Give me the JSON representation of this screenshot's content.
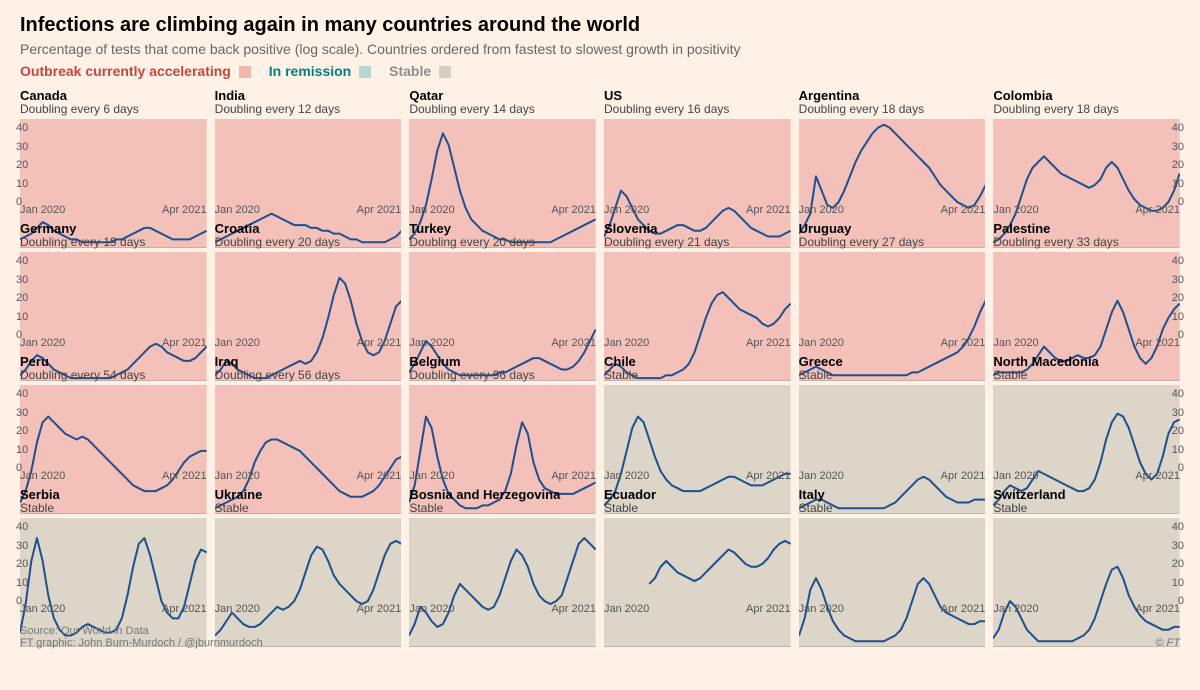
{
  "page_bg": "#fff1e5",
  "title": "Infections are climbing again in many countries around the world",
  "title_color": "#000000",
  "subtitle": "Percentage of tests that come back positive (log scale). Countries ordered from fastest to slowest growth in positivity",
  "subtitle_color": "#666666",
  "legend": [
    {
      "label": "Outbreak currently accelerating",
      "color": "#c4463e",
      "swatch": "#f0b8b0"
    },
    {
      "label": "In remission",
      "color": "#007f7f",
      "swatch": "#b6d8d2"
    },
    {
      "label": "Stable",
      "color": "#8c8c8c",
      "swatch": "#d6cfc3"
    }
  ],
  "ylim": [
    0,
    45
  ],
  "yticks": [
    0,
    10,
    20,
    30,
    40
  ],
  "xlabels": [
    "Jan 2020",
    "Apr 2021"
  ],
  "line_color": "#1e4f8f",
  "line_width": 2,
  "axis_color": "#999999",
  "plot_colors": {
    "accelerating": "#f3c1ba",
    "remission": "#bedbd6",
    "stable": "#dcd5c8"
  },
  "footer": {
    "source": "Source: Our World in Data",
    "credit": "FT graphic: John Burn-Murdoch / @jburnmurdoch",
    "copyright": "© FT"
  },
  "panels": [
    {
      "country": "Canada",
      "status": "Doubling every 6 days",
      "cat": "accelerating",
      "series": [
        3,
        4,
        5,
        7,
        9,
        8,
        6,
        5,
        4,
        3,
        3,
        2,
        2,
        2,
        2,
        2,
        2,
        3,
        3,
        4,
        5,
        6,
        7,
        7,
        6,
        5,
        4,
        3,
        3,
        3,
        3,
        4,
        5,
        6
      ]
    },
    {
      "country": "India",
      "status": "Doubling every 12 days",
      "cat": "accelerating",
      "series": [
        2,
        3,
        4,
        5,
        6,
        7,
        8,
        9,
        10,
        11,
        12,
        11,
        10,
        9,
        8,
        8,
        8,
        7,
        7,
        6,
        6,
        5,
        5,
        4,
        3,
        3,
        2,
        2,
        2,
        2,
        2,
        3,
        4,
        6
      ]
    },
    {
      "country": "Qatar",
      "status": "Doubling every 14 days",
      "cat": "accelerating",
      "series": [
        3,
        5,
        9,
        15,
        24,
        34,
        40,
        36,
        28,
        20,
        14,
        10,
        8,
        6,
        5,
        4,
        3,
        3,
        2,
        2,
        2,
        2,
        2,
        2,
        2,
        2,
        3,
        4,
        5,
        6,
        7,
        8,
        9,
        10
      ]
    },
    {
      "country": "US",
      "status": "Doubling every 16 days",
      "cat": "accelerating",
      "series": [
        4,
        8,
        14,
        20,
        18,
        14,
        10,
        8,
        6,
        5,
        5,
        6,
        7,
        8,
        8,
        7,
        6,
        6,
        7,
        9,
        11,
        13,
        14,
        13,
        11,
        9,
        7,
        6,
        5,
        4,
        4,
        4,
        5,
        6
      ]
    },
    {
      "country": "Argentina",
      "status": "Doubling every 18 days",
      "cat": "accelerating",
      "series": [
        5,
        8,
        12,
        25,
        20,
        15,
        14,
        16,
        20,
        25,
        30,
        34,
        37,
        40,
        42,
        43,
        42,
        40,
        38,
        36,
        34,
        32,
        30,
        28,
        25,
        22,
        20,
        18,
        16,
        15,
        14,
        15,
        18,
        22
      ]
    },
    {
      "country": "Colombia",
      "status": "Doubling every 18 days",
      "cat": "accelerating",
      "series": [
        2,
        3,
        5,
        8,
        12,
        18,
        24,
        28,
        30,
        32,
        30,
        28,
        26,
        25,
        24,
        23,
        22,
        21,
        22,
        24,
        28,
        30,
        28,
        24,
        20,
        17,
        15,
        14,
        13,
        13,
        14,
        16,
        20,
        26
      ]
    },
    {
      "country": "Germany",
      "status": "Doubling every 19 days",
      "cat": "accelerating",
      "series": [
        2,
        4,
        7,
        9,
        8,
        6,
        4,
        3,
        2,
        1,
        1,
        1,
        1,
        1,
        1,
        1,
        1,
        2,
        3,
        4,
        6,
        8,
        10,
        12,
        13,
        12,
        10,
        9,
        8,
        7,
        7,
        8,
        10,
        12
      ]
    },
    {
      "country": "Croatia",
      "status": "Doubling every 20 days",
      "cat": "accelerating",
      "series": [
        2,
        4,
        7,
        6,
        4,
        3,
        2,
        1,
        1,
        1,
        2,
        3,
        4,
        5,
        6,
        7,
        6,
        7,
        10,
        15,
        22,
        30,
        36,
        34,
        28,
        20,
        14,
        10,
        9,
        10,
        14,
        20,
        26,
        28
      ]
    },
    {
      "country": "Turkey",
      "status": "Doubling every 20 days",
      "cat": "accelerating",
      "series": [
        3,
        6,
        10,
        14,
        12,
        9,
        6,
        4,
        3,
        2,
        2,
        2,
        2,
        2,
        2,
        2,
        3,
        3,
        4,
        5,
        6,
        7,
        8,
        8,
        7,
        6,
        5,
        4,
        4,
        5,
        7,
        10,
        14,
        18
      ]
    },
    {
      "country": "Slovenia",
      "status": "Doubling every 21 days",
      "cat": "accelerating",
      "series": [
        2,
        4,
        6,
        5,
        3,
        2,
        1,
        1,
        1,
        1,
        1,
        2,
        2,
        3,
        4,
        6,
        10,
        16,
        22,
        27,
        30,
        31,
        29,
        27,
        25,
        24,
        23,
        22,
        20,
        19,
        20,
        22,
        25,
        27
      ]
    },
    {
      "country": "Uruguay",
      "status": "Doubling every 27 days",
      "cat": "accelerating",
      "series": [
        2,
        3,
        4,
        5,
        4,
        3,
        2,
        2,
        2,
        2,
        2,
        2,
        2,
        2,
        2,
        2,
        2,
        2,
        2,
        2,
        3,
        3,
        4,
        5,
        6,
        7,
        8,
        9,
        10,
        12,
        15,
        19,
        24,
        28
      ]
    },
    {
      "country": "Palestine",
      "status": "Doubling every 33 days",
      "cat": "accelerating",
      "series": [
        2,
        3,
        3,
        3,
        3,
        3,
        4,
        6,
        9,
        12,
        10,
        8,
        7,
        7,
        8,
        9,
        8,
        8,
        9,
        12,
        18,
        24,
        28,
        24,
        18,
        12,
        8,
        6,
        8,
        12,
        18,
        22,
        25,
        27
      ]
    },
    {
      "country": "Peru",
      "status": "Doubling every 54 days",
      "cat": "accelerating",
      "series": [
        4,
        8,
        15,
        25,
        32,
        34,
        32,
        30,
        28,
        27,
        26,
        27,
        26,
        24,
        22,
        20,
        18,
        16,
        14,
        12,
        10,
        9,
        8,
        8,
        8,
        9,
        10,
        12,
        15,
        18,
        20,
        21,
        22,
        22
      ]
    },
    {
      "country": "Iraq",
      "status": "Doubling every 56 days",
      "cat": "accelerating",
      "series": [
        2,
        3,
        4,
        5,
        6,
        8,
        12,
        18,
        22,
        25,
        26,
        26,
        25,
        24,
        23,
        22,
        20,
        18,
        16,
        14,
        12,
        10,
        8,
        7,
        6,
        6,
        6,
        7,
        8,
        10,
        13,
        16,
        19,
        20
      ]
    },
    {
      "country": "Belgium",
      "status": "Doubling every 96 days",
      "cat": "accelerating",
      "series": [
        4,
        10,
        22,
        34,
        30,
        20,
        12,
        7,
        5,
        3,
        2,
        2,
        2,
        3,
        3,
        4,
        5,
        8,
        14,
        24,
        32,
        28,
        18,
        12,
        9,
        8,
        7,
        7,
        7,
        7,
        8,
        9,
        10,
        11
      ]
    },
    {
      "country": "Chile",
      "status": "Stable",
      "cat": "stable",
      "series": [
        3,
        5,
        8,
        14,
        22,
        30,
        34,
        32,
        26,
        20,
        15,
        12,
        10,
        9,
        8,
        8,
        8,
        8,
        9,
        10,
        11,
        12,
        13,
        13,
        12,
        11,
        10,
        10,
        10,
        11,
        12,
        13,
        14,
        14
      ]
    },
    {
      "country": "Greece",
      "status": "Stable",
      "cat": "stable",
      "series": [
        2,
        3,
        4,
        5,
        5,
        4,
        3,
        2,
        2,
        2,
        2,
        2,
        2,
        2,
        2,
        2,
        3,
        4,
        6,
        8,
        10,
        12,
        13,
        12,
        10,
        8,
        6,
        5,
        4,
        4,
        4,
        5,
        5,
        5
      ]
    },
    {
      "country": "North Macedonia",
      "status": "Stable",
      "cat": "stable",
      "series": [
        3,
        5,
        8,
        10,
        9,
        8,
        9,
        12,
        15,
        14,
        13,
        12,
        11,
        10,
        9,
        8,
        8,
        9,
        12,
        18,
        26,
        32,
        35,
        34,
        30,
        24,
        18,
        14,
        12,
        14,
        20,
        28,
        32,
        33
      ]
    },
    {
      "country": "Serbia",
      "status": "Stable",
      "cat": "stable",
      "series": [
        5,
        15,
        30,
        38,
        30,
        18,
        10,
        6,
        4,
        4,
        5,
        7,
        8,
        7,
        6,
        5,
        5,
        6,
        10,
        18,
        28,
        36,
        38,
        32,
        24,
        16,
        12,
        10,
        10,
        14,
        22,
        30,
        34,
        33
      ]
    },
    {
      "country": "Ukraine",
      "status": "Stable",
      "cat": "stable",
      "series": [
        4,
        6,
        9,
        12,
        10,
        8,
        7,
        7,
        8,
        10,
        12,
        14,
        13,
        14,
        16,
        20,
        26,
        32,
        35,
        34,
        30,
        25,
        22,
        20,
        18,
        16,
        15,
        16,
        20,
        26,
        32,
        36,
        37,
        36
      ]
    },
    {
      "country": "Bosnia and Herzegovina",
      "status": "Stable",
      "cat": "stable",
      "series": [
        4,
        8,
        14,
        12,
        9,
        7,
        8,
        12,
        18,
        22,
        20,
        18,
        16,
        14,
        13,
        14,
        18,
        24,
        30,
        34,
        32,
        28,
        22,
        18,
        16,
        15,
        16,
        18,
        24,
        30,
        36,
        38,
        36,
        34
      ]
    },
    {
      "country": "Ecuador",
      "status": "Stable",
      "cat": "stable",
      "series": [
        null,
        null,
        null,
        null,
        null,
        null,
        null,
        null,
        22,
        24,
        28,
        30,
        28,
        26,
        25,
        24,
        23,
        24,
        26,
        28,
        30,
        32,
        34,
        33,
        31,
        29,
        28,
        28,
        29,
        31,
        34,
        36,
        37,
        36
      ]
    },
    {
      "country": "Italy",
      "status": "Stable",
      "cat": "stable",
      "series": [
        4,
        10,
        20,
        24,
        20,
        14,
        9,
        6,
        4,
        3,
        2,
        2,
        2,
        2,
        2,
        2,
        3,
        4,
        6,
        10,
        16,
        22,
        24,
        22,
        18,
        14,
        12,
        11,
        10,
        9,
        8,
        8,
        9,
        9
      ]
    },
    {
      "country": "Switzerland",
      "status": "Stable",
      "cat": "stable",
      "series": [
        3,
        6,
        12,
        16,
        14,
        10,
        6,
        4,
        2,
        2,
        2,
        2,
        2,
        2,
        2,
        3,
        4,
        6,
        10,
        16,
        22,
        27,
        28,
        24,
        18,
        14,
        11,
        9,
        8,
        7,
        6,
        6,
        7,
        7
      ]
    }
  ]
}
